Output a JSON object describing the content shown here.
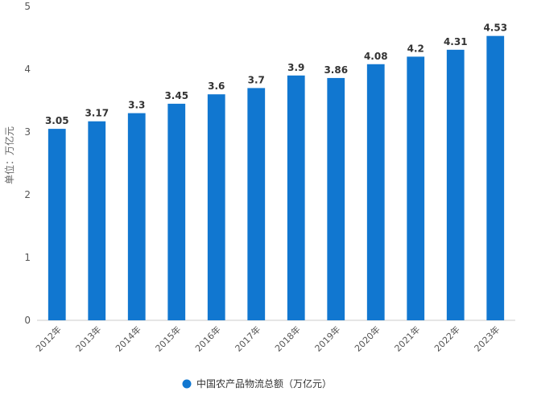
{
  "chart_data": {
    "type": "bar",
    "categories": [
      "2012年",
      "2013年",
      "2014年",
      "2015年",
      "2016年",
      "2017年",
      "2018年",
      "2019年",
      "2020年",
      "2021年",
      "2022年",
      "2023年"
    ],
    "series": [
      {
        "name": "中国农产品物流总额（万亿元）",
        "values": [
          3.05,
          3.17,
          3.3,
          3.45,
          3.6,
          3.7,
          3.9,
          3.86,
          4.08,
          4.2,
          4.31,
          4.53
        ],
        "color": "#1177d0"
      }
    ],
    "data_labels": [
      "3.05",
      "3.17",
      "3.3",
      "3.45",
      "3.6",
      "3.7",
      "3.9",
      "3.86",
      "4.08",
      "4.2",
      "4.31",
      "4.53"
    ],
    "ylabel": "单位：万亿元",
    "ylim": [
      0,
      5
    ],
    "yticks": [
      "0",
      "1",
      "2",
      "3",
      "4",
      "5"
    ],
    "grid": false,
    "legend_position": "bottom-center"
  }
}
